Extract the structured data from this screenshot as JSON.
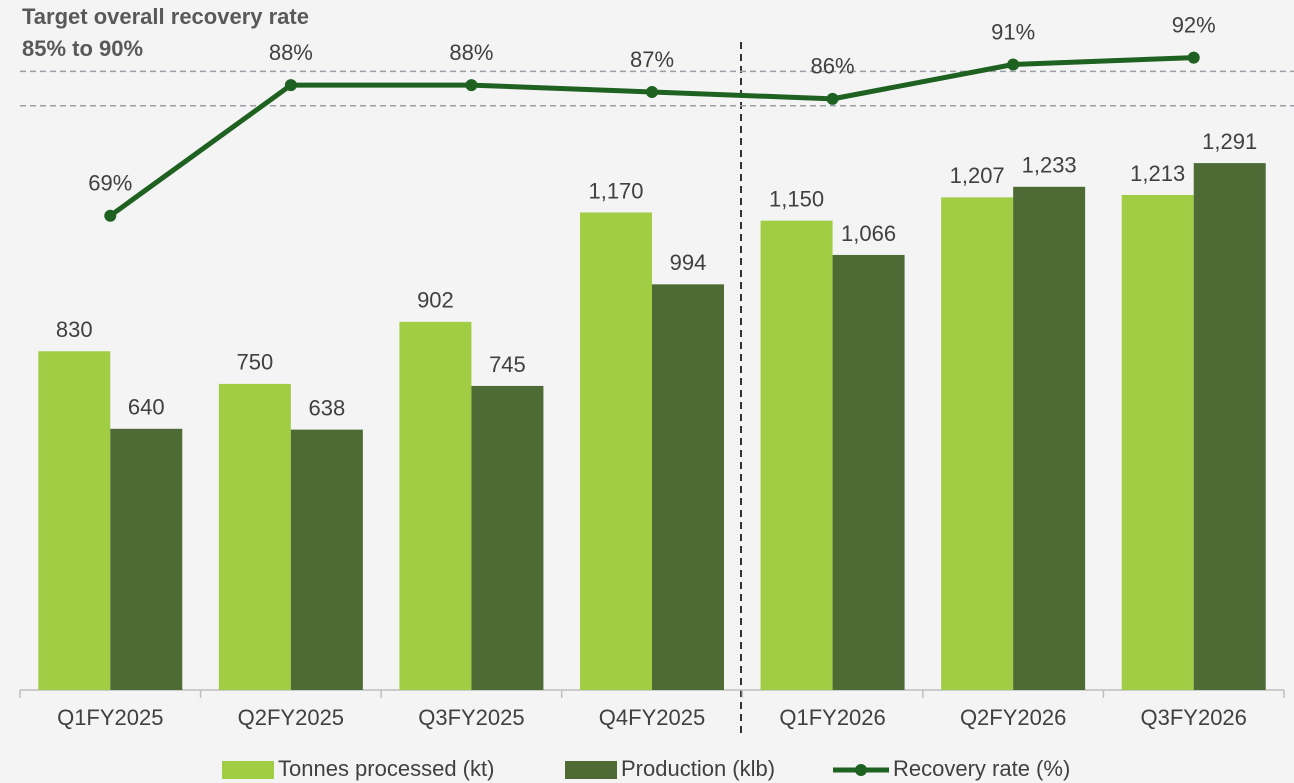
{
  "chart_data": {
    "type": "bar-line",
    "annotations": [
      "Target overall recovery rate",
      "85% to 90%"
    ],
    "target_range": [
      85,
      90
    ],
    "categories": [
      "Q1FY2025",
      "Q2FY2025",
      "Q3FY2025",
      "Q4FY2025",
      "Q1FY2026",
      "Q2FY2026",
      "Q3FY2026"
    ],
    "series": [
      {
        "name": "Tonnes processed (kt)",
        "type": "bar",
        "color": "#a0cd43",
        "values": [
          830,
          750,
          902,
          1170,
          1150,
          1207,
          1213
        ],
        "value_labels": [
          "830",
          "750",
          "902",
          "1,170",
          "1,150",
          "1,207",
          "1,213"
        ]
      },
      {
        "name": "Production (klb)",
        "type": "bar",
        "color": "#4e6a35",
        "values": [
          640,
          638,
          745,
          994,
          1066,
          1233,
          1291
        ],
        "value_labels": [
          "640",
          "638",
          "745",
          "994",
          "1,066",
          "1,233",
          "1,291"
        ]
      },
      {
        "name": "Recovery rate (%)",
        "type": "line",
        "axis": "y2",
        "color": "#1e6120",
        "values": [
          69,
          88,
          88,
          87,
          86,
          91,
          92
        ],
        "value_labels": [
          "69%",
          "88%",
          "88%",
          "87%",
          "86%",
          "91%",
          "92%"
        ]
      }
    ],
    "ylim": [
      0,
      1600
    ],
    "y2lim": [
      0,
      95
    ]
  }
}
